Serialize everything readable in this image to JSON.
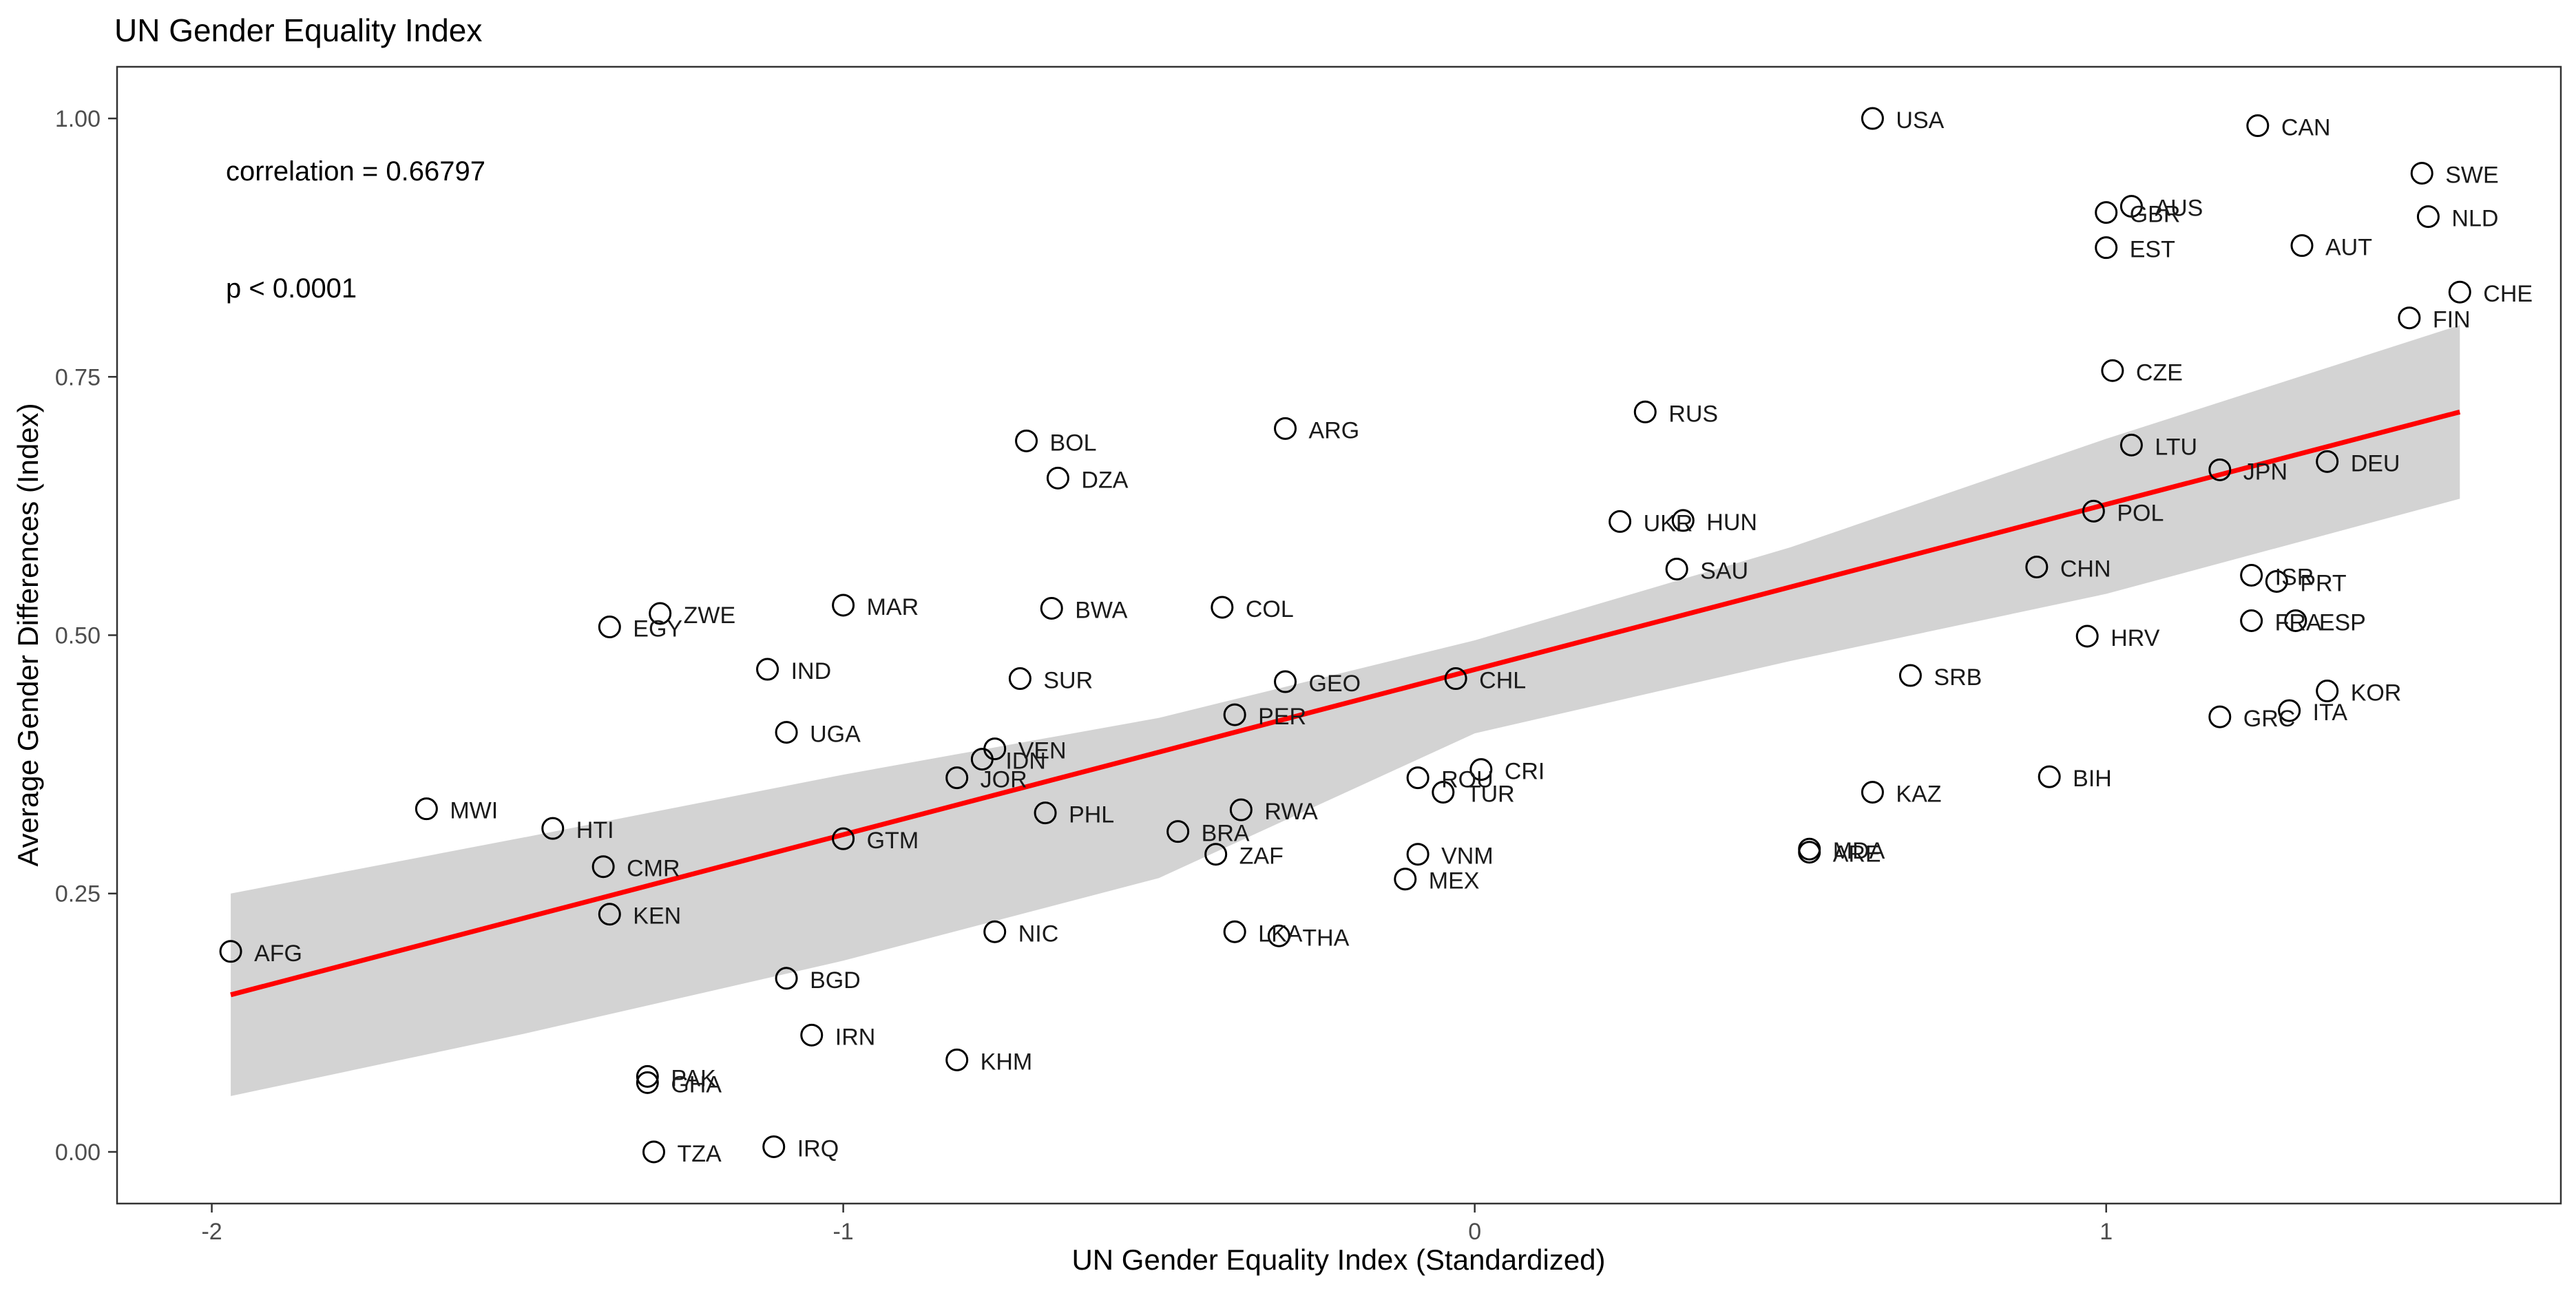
{
  "chart_data": {
    "type": "scatter",
    "title": "UN Gender Equality Index",
    "xlabel": "UN Gender Equality Index (Standardized)",
    "ylabel": "Average Gender Differences (Index)",
    "xlim": [
      -2.15,
      1.72
    ],
    "ylim": [
      -0.05,
      1.05
    ],
    "xticks": [
      -2,
      -1,
      0,
      1
    ],
    "xtick_labels": [
      "-2",
      "-1",
      "0",
      "1"
    ],
    "yticks": [
      0,
      0.25,
      0.5,
      0.75,
      1.0
    ],
    "ytick_labels": [
      "0.00",
      "0.25",
      "0.50",
      "0.75",
      "1.00"
    ],
    "grid": false,
    "annotations": [
      "correlation = 0.66797",
      "p < 0.0001"
    ],
    "colors": {
      "fit_line": "#ff0000",
      "confidence_band": "#d3d3d3",
      "points": "#000000"
    },
    "fit": {
      "x": [
        -1.97,
        1.56
      ],
      "y": [
        0.152,
        0.716
      ]
    },
    "band": {
      "x": [
        -1.97,
        -1.5,
        -1.0,
        -0.5,
        0.0,
        0.5,
        1.0,
        1.56
      ],
      "upper": [
        0.25,
        0.305,
        0.365,
        0.42,
        0.495,
        0.585,
        0.69,
        0.8
      ],
      "lower": [
        0.054,
        0.115,
        0.185,
        0.265,
        0.405,
        0.475,
        0.54,
        0.632
      ]
    },
    "points": [
      {
        "label": "USA",
        "x": 0.63,
        "y": 1.0
      },
      {
        "label": "CAN",
        "x": 1.24,
        "y": 0.993
      },
      {
        "label": "SWE",
        "x": 1.5,
        "y": 0.947
      },
      {
        "label": "NLD",
        "x": 1.51,
        "y": 0.905
      },
      {
        "label": "AUS",
        "x": 1.04,
        "y": 0.915
      },
      {
        "label": "GBR",
        "x": 1.0,
        "y": 0.909
      },
      {
        "label": "EST",
        "x": 1.0,
        "y": 0.875
      },
      {
        "label": "AUT",
        "x": 1.31,
        "y": 0.877
      },
      {
        "label": "CHE",
        "x": 1.56,
        "y": 0.832
      },
      {
        "label": "FIN",
        "x": 1.48,
        "y": 0.807
      },
      {
        "label": "CZE",
        "x": 1.01,
        "y": 0.756
      },
      {
        "label": "RUS",
        "x": 0.27,
        "y": 0.716
      },
      {
        "label": "ARG",
        "x": -0.3,
        "y": 0.7
      },
      {
        "label": "BOL",
        "x": -0.71,
        "y": 0.688
      },
      {
        "label": "DZA",
        "x": -0.66,
        "y": 0.652
      },
      {
        "label": "LTU",
        "x": 1.04,
        "y": 0.684
      },
      {
        "label": "JPN",
        "x": 1.18,
        "y": 0.66
      },
      {
        "label": "DEU",
        "x": 1.35,
        "y": 0.668
      },
      {
        "label": "POL",
        "x": 0.98,
        "y": 0.62
      },
      {
        "label": "UKR",
        "x": 0.23,
        "y": 0.61
      },
      {
        "label": "HUN",
        "x": 0.33,
        "y": 0.611
      },
      {
        "label": "SAU",
        "x": 0.32,
        "y": 0.564
      },
      {
        "label": "CHN",
        "x": 0.89,
        "y": 0.566
      },
      {
        "label": "ISR",
        "x": 1.23,
        "y": 0.558
      },
      {
        "label": "PRT",
        "x": 1.27,
        "y": 0.552
      },
      {
        "label": "FRA",
        "x": 1.23,
        "y": 0.514
      },
      {
        "label": "ESP",
        "x": 1.3,
        "y": 0.514
      },
      {
        "label": "HRV",
        "x": 0.97,
        "y": 0.499
      },
      {
        "label": "ZWE",
        "x": -1.29,
        "y": 0.521
      },
      {
        "label": "EGY",
        "x": -1.37,
        "y": 0.508
      },
      {
        "label": "MAR",
        "x": -1.0,
        "y": 0.529
      },
      {
        "label": "BWA",
        "x": -0.67,
        "y": 0.526
      },
      {
        "label": "COL",
        "x": -0.4,
        "y": 0.527
      },
      {
        "label": "IND",
        "x": -1.12,
        "y": 0.467
      },
      {
        "label": "SUR",
        "x": -0.72,
        "y": 0.458
      },
      {
        "label": "GEO",
        "x": -0.3,
        "y": 0.455
      },
      {
        "label": "CHL",
        "x": -0.03,
        "y": 0.458
      },
      {
        "label": "SRB",
        "x": 0.69,
        "y": 0.461
      },
      {
        "label": "KOR",
        "x": 1.35,
        "y": 0.446
      },
      {
        "label": "ITA",
        "x": 1.29,
        "y": 0.427
      },
      {
        "label": "GRC",
        "x": 1.18,
        "y": 0.421
      },
      {
        "label": "PER",
        "x": -0.38,
        "y": 0.423
      },
      {
        "label": "UGA",
        "x": -1.09,
        "y": 0.406
      },
      {
        "label": "VEN",
        "x": -0.76,
        "y": 0.39
      },
      {
        "label": "IDN",
        "x": -0.78,
        "y": 0.38
      },
      {
        "label": "JOR",
        "x": -0.82,
        "y": 0.362
      },
      {
        "label": "ROU",
        "x": -0.09,
        "y": 0.362
      },
      {
        "label": "CRI",
        "x": 0.01,
        "y": 0.37
      },
      {
        "label": "TUR",
        "x": -0.05,
        "y": 0.348
      },
      {
        "label": "KAZ",
        "x": 0.63,
        "y": 0.348
      },
      {
        "label": "BIH",
        "x": 0.91,
        "y": 0.363
      },
      {
        "label": "MWI",
        "x": -1.66,
        "y": 0.332
      },
      {
        "label": "HTI",
        "x": -1.46,
        "y": 0.313
      },
      {
        "label": "PHL",
        "x": -0.68,
        "y": 0.328
      },
      {
        "label": "RWA",
        "x": -0.37,
        "y": 0.331
      },
      {
        "label": "BRA",
        "x": -0.47,
        "y": 0.31
      },
      {
        "label": "GTM",
        "x": -1.0,
        "y": 0.303
      },
      {
        "label": "ZAF",
        "x": -0.41,
        "y": 0.288
      },
      {
        "label": "VNM",
        "x": -0.09,
        "y": 0.288
      },
      {
        "label": "MDA",
        "x": 0.53,
        "y": 0.293
      },
      {
        "label": "ARE",
        "x": 0.53,
        "y": 0.29
      },
      {
        "label": "CMR",
        "x": -1.38,
        "y": 0.276
      },
      {
        "label": "MEX",
        "x": -0.11,
        "y": 0.264
      },
      {
        "label": "KEN",
        "x": -1.37,
        "y": 0.23
      },
      {
        "label": "AFG",
        "x": -1.97,
        "y": 0.194
      },
      {
        "label": "NIC",
        "x": -0.76,
        "y": 0.213
      },
      {
        "label": "LKA",
        "x": -0.38,
        "y": 0.213
      },
      {
        "label": "THA",
        "x": -0.31,
        "y": 0.209
      },
      {
        "label": "BGD",
        "x": -1.09,
        "y": 0.168
      },
      {
        "label": "IRN",
        "x": -1.05,
        "y": 0.113
      },
      {
        "label": "KHM",
        "x": -0.82,
        "y": 0.089
      },
      {
        "label": "PAK",
        "x": -1.31,
        "y": 0.073
      },
      {
        "label": "GHA",
        "x": -1.31,
        "y": 0.067
      },
      {
        "label": "IRQ",
        "x": -1.11,
        "y": 0.005
      },
      {
        "label": "TZA",
        "x": -1.3,
        "y": 0.0
      }
    ]
  }
}
